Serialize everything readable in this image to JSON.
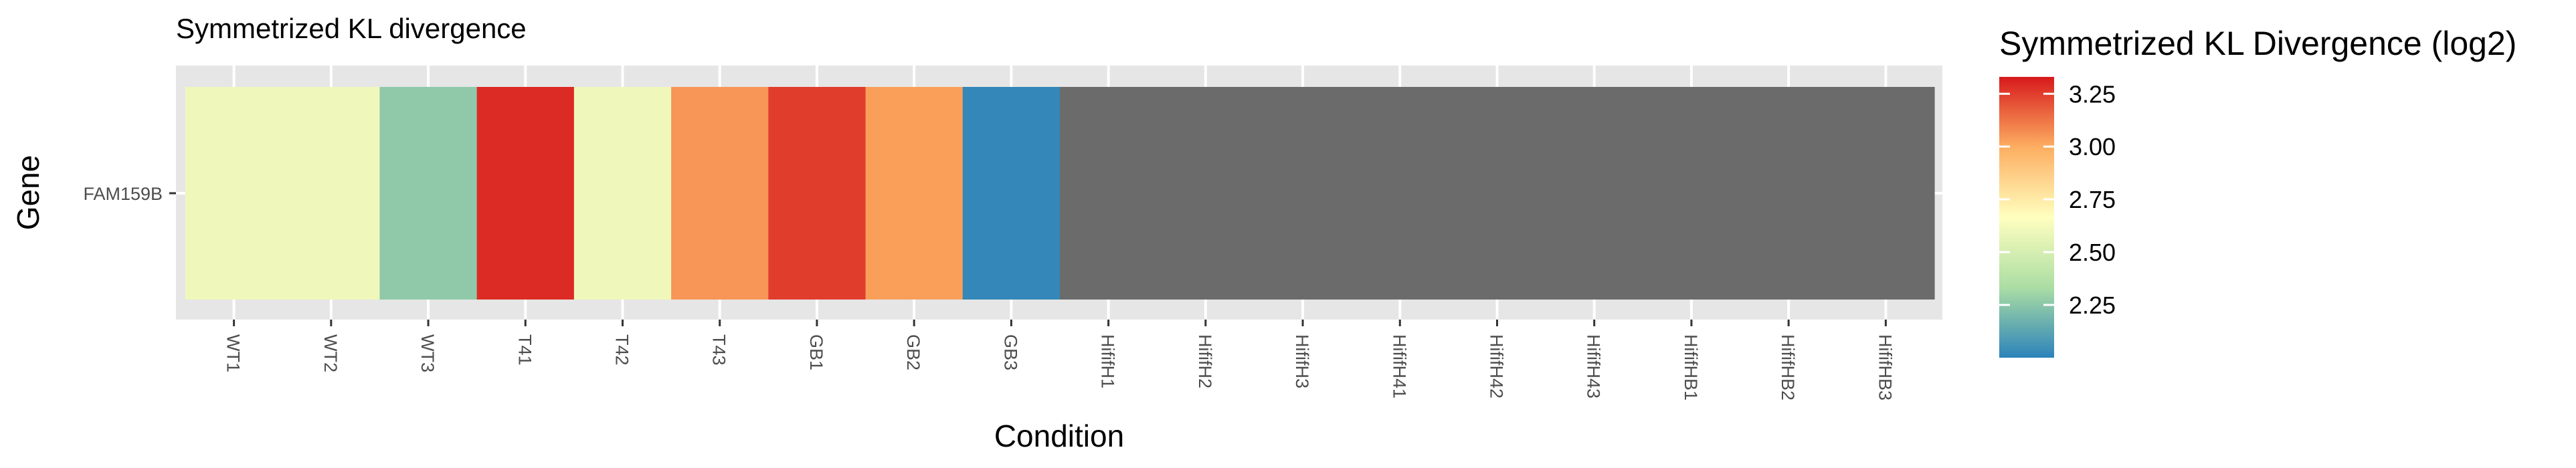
{
  "chart_data": {
    "type": "heatmap",
    "title": "Symmetrized KL divergence",
    "xlabel": "Condition",
    "ylabel": "Gene",
    "y_categories": [
      "FAM159B"
    ],
    "x_categories": [
      "WT1",
      "WT2",
      "WT3",
      "T41",
      "T42",
      "T43",
      "GB1",
      "GB2",
      "GB3",
      "HififH1",
      "HififH2",
      "HififH3",
      "HififH41",
      "HififH42",
      "HififH43",
      "HififHB1",
      "HififHB2",
      "HififHB3"
    ],
    "values": [
      [
        2.6,
        2.6,
        2.26,
        3.29,
        2.6,
        3.05,
        3.25,
        3.03,
        2.02,
        null,
        null,
        null,
        null,
        null,
        null,
        null,
        null,
        null
      ]
    ],
    "na_color": "#6b6b6b",
    "legend": {
      "title": "Symmetrized KL Divergence (log2)",
      "position": "right",
      "limits": [
        2.0,
        3.33
      ],
      "breaks": [
        2.25,
        2.5,
        2.75,
        3.0,
        3.25
      ],
      "break_labels": [
        "2.25",
        "2.50",
        "2.75",
        "3.00",
        "3.25"
      ],
      "palette": [
        "#2b83ba",
        "#abdda4",
        "#ffffbf",
        "#fdae61",
        "#d7191c"
      ]
    },
    "grid": true,
    "panel_background": "#e6e6e6"
  }
}
